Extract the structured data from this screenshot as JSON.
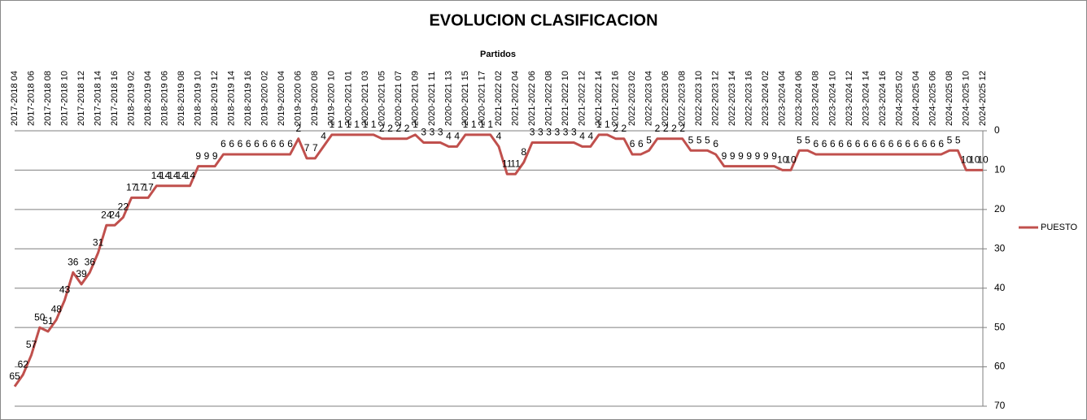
{
  "chart_data": {
    "type": "line",
    "title": "EVOLUCION CLASIFICACION",
    "x_label": "Partidos",
    "categories": [
      "2017-2018 04",
      null,
      "2017-2018 06",
      null,
      "2017-2018 08",
      null,
      "2017-2018 10",
      null,
      "2017-2018 12",
      null,
      "2017-2018 14",
      null,
      "2017-2018 16",
      null,
      "2018-2019 02",
      null,
      "2018-2019 04",
      null,
      "2018-2019 06",
      null,
      "2018-2019 08",
      null,
      "2018-2019 10",
      null,
      "2018-2019 12",
      null,
      "2018-2019 14",
      null,
      "2018-2019 16",
      null,
      "2019-2020 02",
      null,
      "2019-2020 04",
      null,
      "2019-2020 06",
      null,
      "2019-2020 08",
      null,
      "2019-2020 10",
      null,
      "2020-2021 01",
      null,
      "2020-2021 03",
      null,
      "2020-2021 05",
      null,
      "2020-2021 07",
      null,
      "2020-2021 09",
      null,
      "2020-2021 11",
      null,
      "2020-2021 13",
      null,
      "2020-2021 15",
      null,
      "2020-2021 17",
      null,
      "2021-2022 02",
      null,
      "2021-2022 04",
      null,
      "2021-2022 06",
      null,
      "2021-2022 08",
      null,
      "2021-2022 10",
      null,
      "2021-2022 12",
      null,
      "2021-2022 14",
      null,
      "2021-2022 16",
      null,
      "2022-2023 02",
      null,
      "2022-2023 04",
      null,
      "2022-2023 06",
      null,
      "2022-2023 08",
      null,
      "2022-2023 10",
      null,
      "2022-2023 12",
      null,
      "2022-2023 14",
      null,
      "2022-2023 16",
      null,
      "2023-2024 02",
      null,
      "2023-2024 04",
      null,
      "2023-2024 06",
      null,
      "2023-2024 08",
      null,
      "2023-2024 10",
      null,
      "2023-2024 12",
      null,
      "2023-2024 14",
      null,
      "2023-2024 16",
      null,
      "2024-2025 02",
      null,
      "2024-2025 04",
      null,
      "2024-2025 06",
      null,
      "2024-2025 08",
      null,
      "2024-2025 10",
      null,
      "2024-2025 12"
    ],
    "series": [
      {
        "name": "PUESTO",
        "color": "#c0504d",
        "values": [
          65,
          62,
          57,
          50,
          51,
          48,
          43,
          36,
          39,
          36,
          31,
          24,
          24,
          22,
          17,
          17,
          17,
          14,
          14,
          14,
          14,
          14,
          9,
          9,
          9,
          6,
          6,
          6,
          6,
          6,
          6,
          6,
          6,
          6,
          2,
          7,
          7,
          4,
          1,
          1,
          1,
          1,
          1,
          1,
          2,
          2,
          2,
          2,
          1,
          3,
          3,
          3,
          4,
          4,
          1,
          1,
          1,
          1,
          4,
          11,
          11,
          8,
          3,
          3,
          3,
          3,
          3,
          3,
          4,
          4,
          1,
          1,
          2,
          2,
          6,
          6,
          5,
          2,
          2,
          2,
          2,
          5,
          5,
          5,
          6,
          9,
          9,
          9,
          9,
          9,
          9,
          9,
          10,
          10,
          5,
          5,
          6,
          6,
          6,
          6,
          6,
          6,
          6,
          6,
          6,
          6,
          6,
          6,
          6,
          6,
          6,
          6,
          5,
          5,
          10,
          10,
          10
        ]
      }
    ],
    "ylim": [
      0,
      70
    ],
    "yticks": [
      0,
      10,
      20,
      30,
      40,
      50,
      60,
      70
    ],
    "y_inverted": true,
    "y_axis_side": "right",
    "grid": true,
    "legend": "right"
  }
}
